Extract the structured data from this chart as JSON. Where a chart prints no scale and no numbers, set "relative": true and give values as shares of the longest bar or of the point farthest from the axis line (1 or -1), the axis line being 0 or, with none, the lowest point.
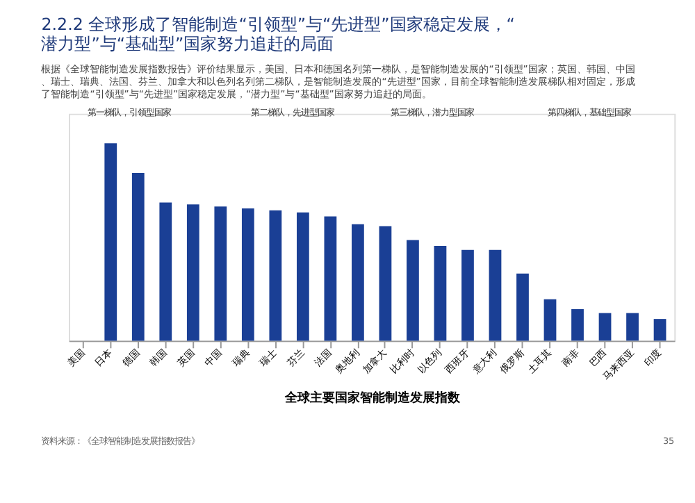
{
  "chart_data": {
    "type": "bar",
    "title": "2.2.2 全球形成了智能制造“引领型”与“先进型”国家稳定发展，“潜力型”与“基础型”国家努力追赶的局面",
    "subtitle": "根据《全球智能制造发展指数报告》评价结果显示，美国、日本和德国名列第一梯队，是智能制造发展的“引领型”国家；英国、韩国、中国、瑞士、瑞典、法国、芬兰、加拿大和以色列名列第二梯队，是智能制造发展的“先进型”国家，目前全球智能制造发展梯队相对固定，形成了智能制造“引领型”与“先进型”国家稳定发展，“潜力型”与“基础型”国家努力追赶的局面。",
    "xlabel": "全球主要国家智能制造发展指数",
    "categories": [
      "美国",
      "日本",
      "德国",
      "韩国",
      "英国",
      "中国",
      "瑞典",
      "瑞士",
      "芬兰",
      "法国",
      "奥地利",
      "加拿大",
      "比利时",
      "以色列",
      "西班牙",
      "意大利",
      "俄罗斯",
      "土耳其",
      "南非",
      "巴西",
      "马来西亚",
      "印度"
    ],
    "values": [
      null,
      1,
      0.85,
      0.7,
      0.69,
      0.68,
      0.67,
      0.66,
      0.65,
      0.63,
      0.59,
      0.58,
      0.51,
      0.48,
      0.46,
      0.46,
      0.34,
      0.21,
      0.16,
      0.14,
      0.14,
      0.11
    ],
    "color": "#1a3f95",
    "relative": true,
    "annotations": [
      "第一梯队，引领型国家",
      "第二梯队，先进型国家",
      "第三梯队，潜力型国家",
      "第四梯队，基础型国家",
      "资料来源：《全球智能制造发展指数报告》",
      "35"
    ]
  }
}
